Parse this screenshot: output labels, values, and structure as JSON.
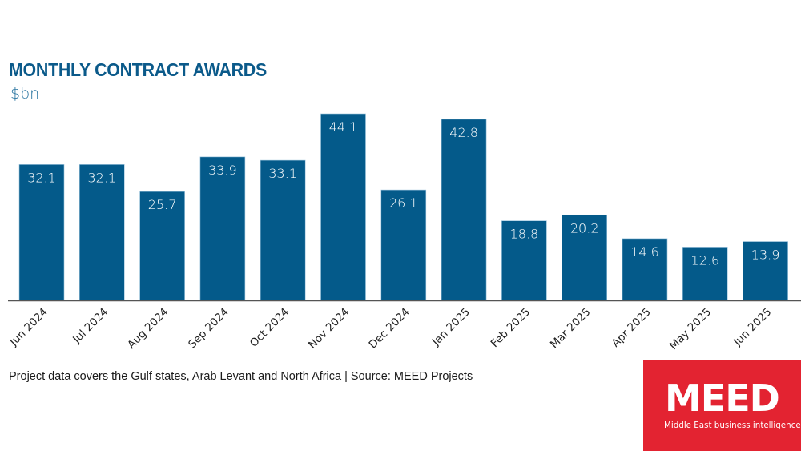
{
  "header": {
    "title": "MONTHLY CONTRACT AWARDS",
    "unit": "$bn"
  },
  "footer": {
    "note": "Project data covers the Gulf states, Arab Levant and North Africa | Source: MEED Projects"
  },
  "logo": {
    "wordmark": "MEED",
    "tagline": "Middle East business intelligence",
    "color": "#e32331"
  },
  "chart_data": {
    "type": "bar",
    "title": "MONTHLY CONTRACT AWARDS",
    "subtitle": "$bn",
    "xlabel": "",
    "ylabel": "$bn",
    "ylim": [
      0,
      44.1
    ],
    "grid": false,
    "bar_color": "#045a8a",
    "categories": [
      "Jun 2024",
      "Jul 2024",
      "Aug 2024",
      "Sep 2024",
      "Oct 2024",
      "Nov 2024",
      "Dec 2024",
      "Jan 2025",
      "Feb 2025",
      "Mar 2025",
      "Apr 2025",
      "May 2025",
      "Jun 2025"
    ],
    "values": [
      32.1,
      32.1,
      25.7,
      33.9,
      33.1,
      44.1,
      26.1,
      42.8,
      18.8,
      20.2,
      14.6,
      12.6,
      13.9
    ],
    "labels": [
      "32.1",
      "32.1",
      "25.7",
      "33.9",
      "33.1",
      "44.1",
      "26.1",
      "42.8",
      "18.8",
      "20.2",
      "14.6",
      "12.6",
      "13.9"
    ]
  }
}
